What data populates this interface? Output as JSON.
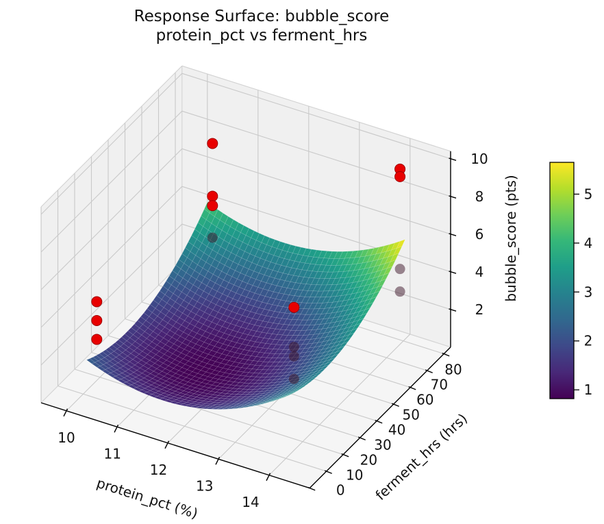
{
  "title": {
    "line1": "Response Surface: bubble_score",
    "line2": "protein_pct vs ferment_hrs"
  },
  "axes": {
    "x": {
      "label": "protein_pct (%)",
      "ticks": [
        10,
        11,
        12,
        13,
        14
      ],
      "range": [
        9.5,
        14.8
      ]
    },
    "y": {
      "label": "ferment_hrs (hrs)",
      "ticks": [
        0,
        10,
        20,
        30,
        40,
        50,
        60,
        70,
        80
      ],
      "range": [
        0,
        84
      ]
    },
    "z": {
      "label": "bubble_score (pts)",
      "ticks": [
        2,
        4,
        6,
        8,
        10
      ],
      "range": [
        0,
        10.4
      ]
    }
  },
  "colorbar": {
    "ticks": [
      1,
      2,
      3,
      4,
      5
    ],
    "vmin": 0.82,
    "vmax": 5.65,
    "colormap": "viridis"
  },
  "colors": {
    "point_red": "#e80000",
    "point_red_edge": "#a00000",
    "occluded_point": "rgba(60,20,40,0.5)",
    "pane": "#f0f0f0",
    "floor": "#f5f5f5",
    "grid": "#c9c9c9",
    "pane_edge": "#d2d2d2",
    "spine": "#000000",
    "mesh_line": "rgba(255,255,255,0.25)",
    "viridis_stops": [
      "#440154",
      "#482878",
      "#3e4989",
      "#31688e",
      "#26828e",
      "#1f9e89",
      "#35b779",
      "#6ece58",
      "#b5de2b",
      "#fde725"
    ]
  },
  "chart_data": {
    "type": "surface+scatter3d",
    "title": "Response Surface: bubble_score — protein_pct vs ferment_hrs",
    "xlabel": "protein_pct (%)",
    "ylabel": "ferment_hrs (hrs)",
    "zlabel": "bubble_score (pts)",
    "surface": {
      "model": "z = 0.82 + 0.3846*(x-11.7)^2 + 0.001135*(y-30)^2",
      "coef": {
        "z0": 0.82,
        "ax": 0.3846,
        "xc": 11.7,
        "ay": 0.001135,
        "yc": 30
      },
      "x_domain": [
        10.2,
        14.1
      ],
      "y_domain": [
        6,
        78
      ],
      "z_range": [
        0.82,
        5.65
      ],
      "colormap": "viridis",
      "grid_steps": 38
    },
    "points": [
      {
        "x": 10.4,
        "y": 6,
        "z": 5.6,
        "occluded": false
      },
      {
        "x": 10.4,
        "y": 6,
        "z": 4.6,
        "occluded": false
      },
      {
        "x": 10.4,
        "y": 6,
        "z": 3.6,
        "occluded": false
      },
      {
        "x": 10.3,
        "y": 78,
        "z": 7.5,
        "occluded": false
      },
      {
        "x": 10.3,
        "y": 78,
        "z": 4.7,
        "occluded": false
      },
      {
        "x": 10.3,
        "y": 78,
        "z": 4.2,
        "occluded": false
      },
      {
        "x": 10.3,
        "y": 78,
        "z": 2.5,
        "occluded": true
      },
      {
        "x": 14.0,
        "y": 78,
        "z": 9.3,
        "occluded": false
      },
      {
        "x": 14.0,
        "y": 78,
        "z": 8.9,
        "occluded": false
      },
      {
        "x": 14.0,
        "y": 78,
        "z": 4.0,
        "occluded": true
      },
      {
        "x": 14.0,
        "y": 78,
        "z": 2.8,
        "occluded": true
      },
      {
        "x": 13.1,
        "y": 42,
        "z": 4.4,
        "occluded": false
      },
      {
        "x": 13.1,
        "y": 42,
        "z": 2.3,
        "occluded": true
      },
      {
        "x": 13.1,
        "y": 42,
        "z": 1.8,
        "occluded": true
      },
      {
        "x": 13.1,
        "y": 42,
        "z": 0.6,
        "occluded": true
      }
    ]
  }
}
